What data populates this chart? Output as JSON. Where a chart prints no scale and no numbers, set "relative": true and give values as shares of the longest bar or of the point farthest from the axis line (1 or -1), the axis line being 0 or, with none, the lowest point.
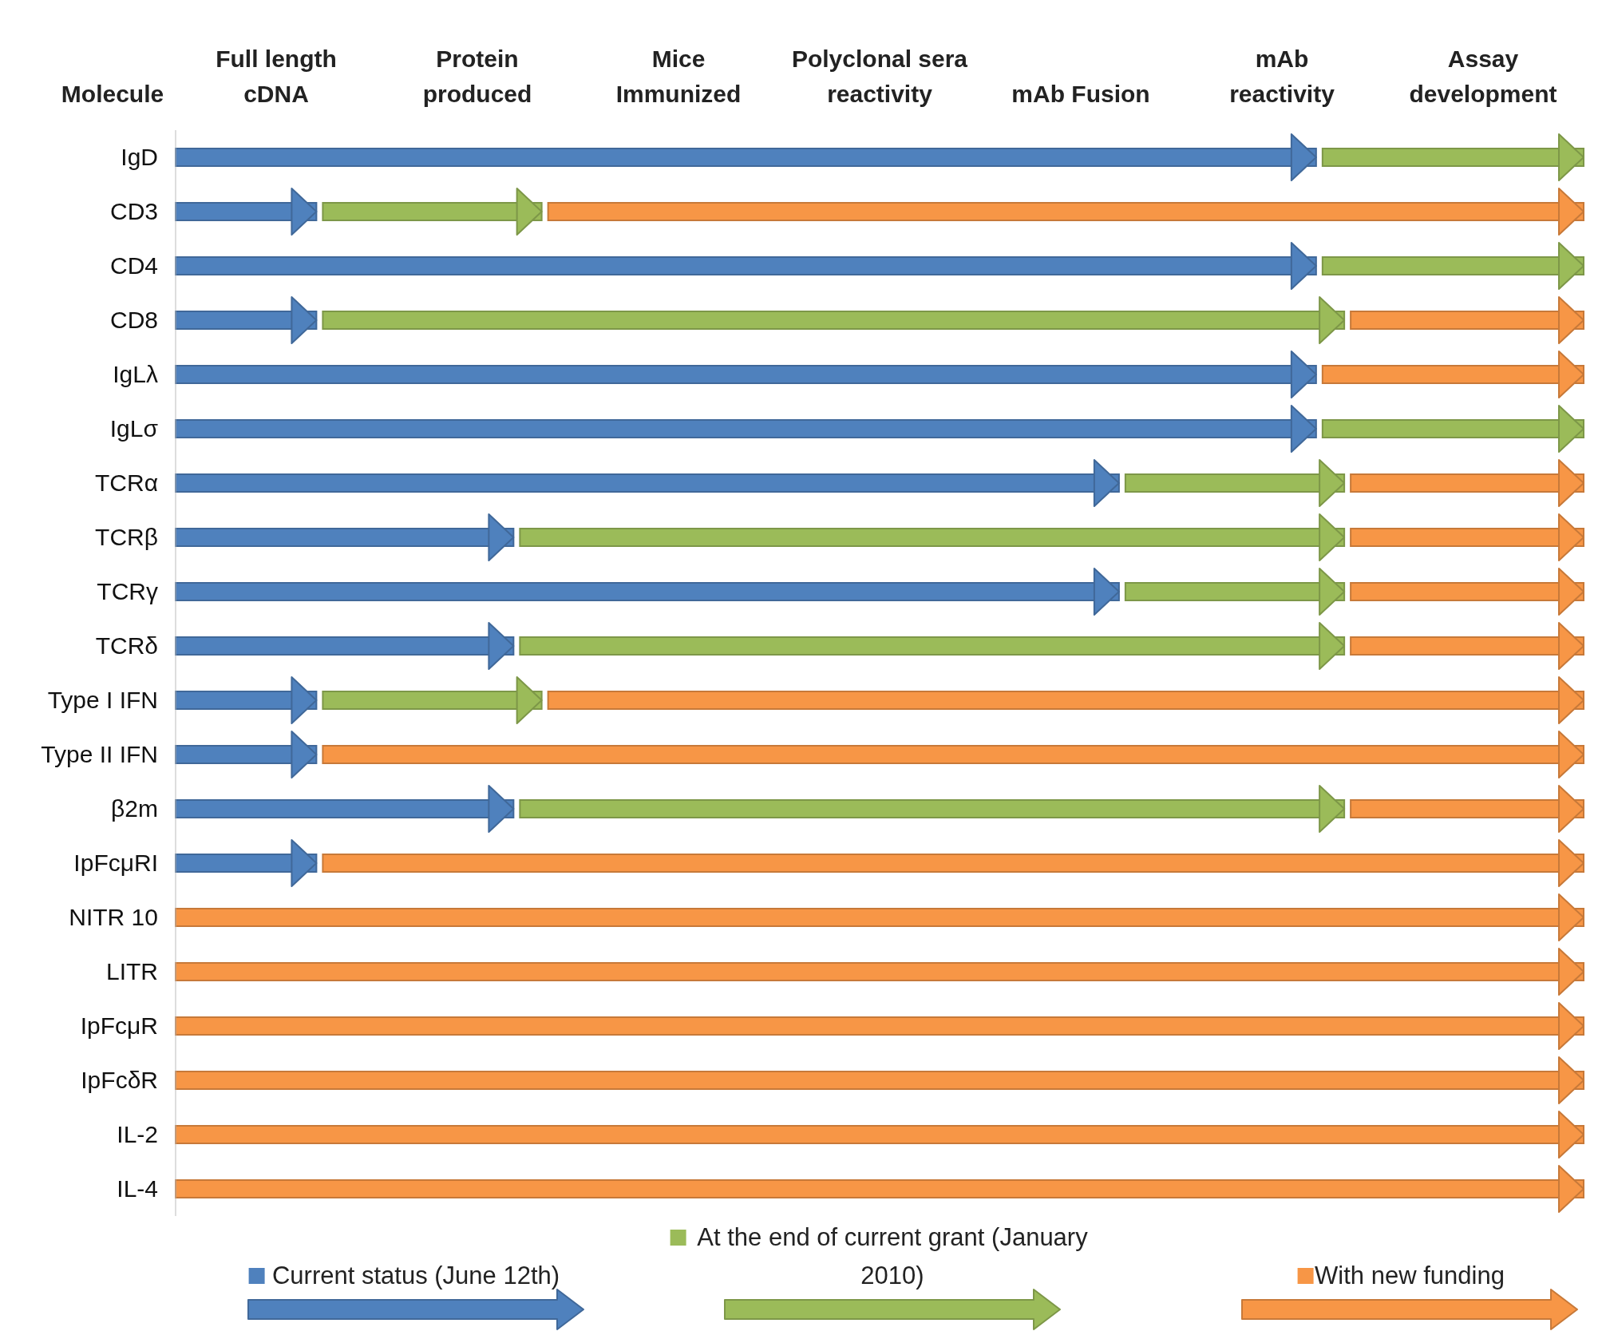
{
  "chart_data": {
    "type": "bar",
    "orientation": "horizontal",
    "stacked": true,
    "relative": true,
    "ylabel": "Molecule",
    "categories": [
      "IgD",
      "CD3",
      "CD4",
      "CD8",
      "IgLλ",
      "IgLσ",
      "TCRα",
      "TCRβ",
      "TCRγ",
      "TCRδ",
      "Type I IFN",
      "Type II IFN",
      "β2m",
      "IpFcμRI",
      "NITR 10",
      "LITR",
      "IpFcμR",
      "IpFcδR",
      "IL-2",
      "IL-4"
    ],
    "annotations": [
      "Full length cDNA",
      "Protein produced",
      "Mice Immunized",
      "Polyclonal sera reactivity",
      "mAb Fusion",
      "mAb reactivity",
      "Assay development"
    ],
    "series": [
      {
        "name": "Current status (June 12th)",
        "color": "#4f81bd",
        "values": [
          0.81,
          0.1,
          0.81,
          0.1,
          0.81,
          0.81,
          0.67,
          0.24,
          0.67,
          0.24,
          0.1,
          0.1,
          0.24,
          0.1,
          null,
          null,
          null,
          null,
          null,
          null
        ]
      },
      {
        "name": "At the end of current grant (January 2010)",
        "color": "#9bbb59",
        "values": [
          0.19,
          0.16,
          0.19,
          0.73,
          null,
          0.19,
          0.16,
          0.59,
          0.16,
          0.59,
          0.16,
          null,
          0.59,
          null,
          null,
          null,
          null,
          null,
          null,
          null
        ]
      },
      {
        "name": "With new funding",
        "color": "#f79646",
        "values": [
          null,
          0.74,
          null,
          0.17,
          0.19,
          null,
          0.17,
          0.17,
          0.17,
          0.17,
          0.74,
          0.9,
          0.17,
          0.9,
          1,
          1,
          1,
          1,
          1,
          1
        ]
      }
    ],
    "legend": "bottom"
  }
}
